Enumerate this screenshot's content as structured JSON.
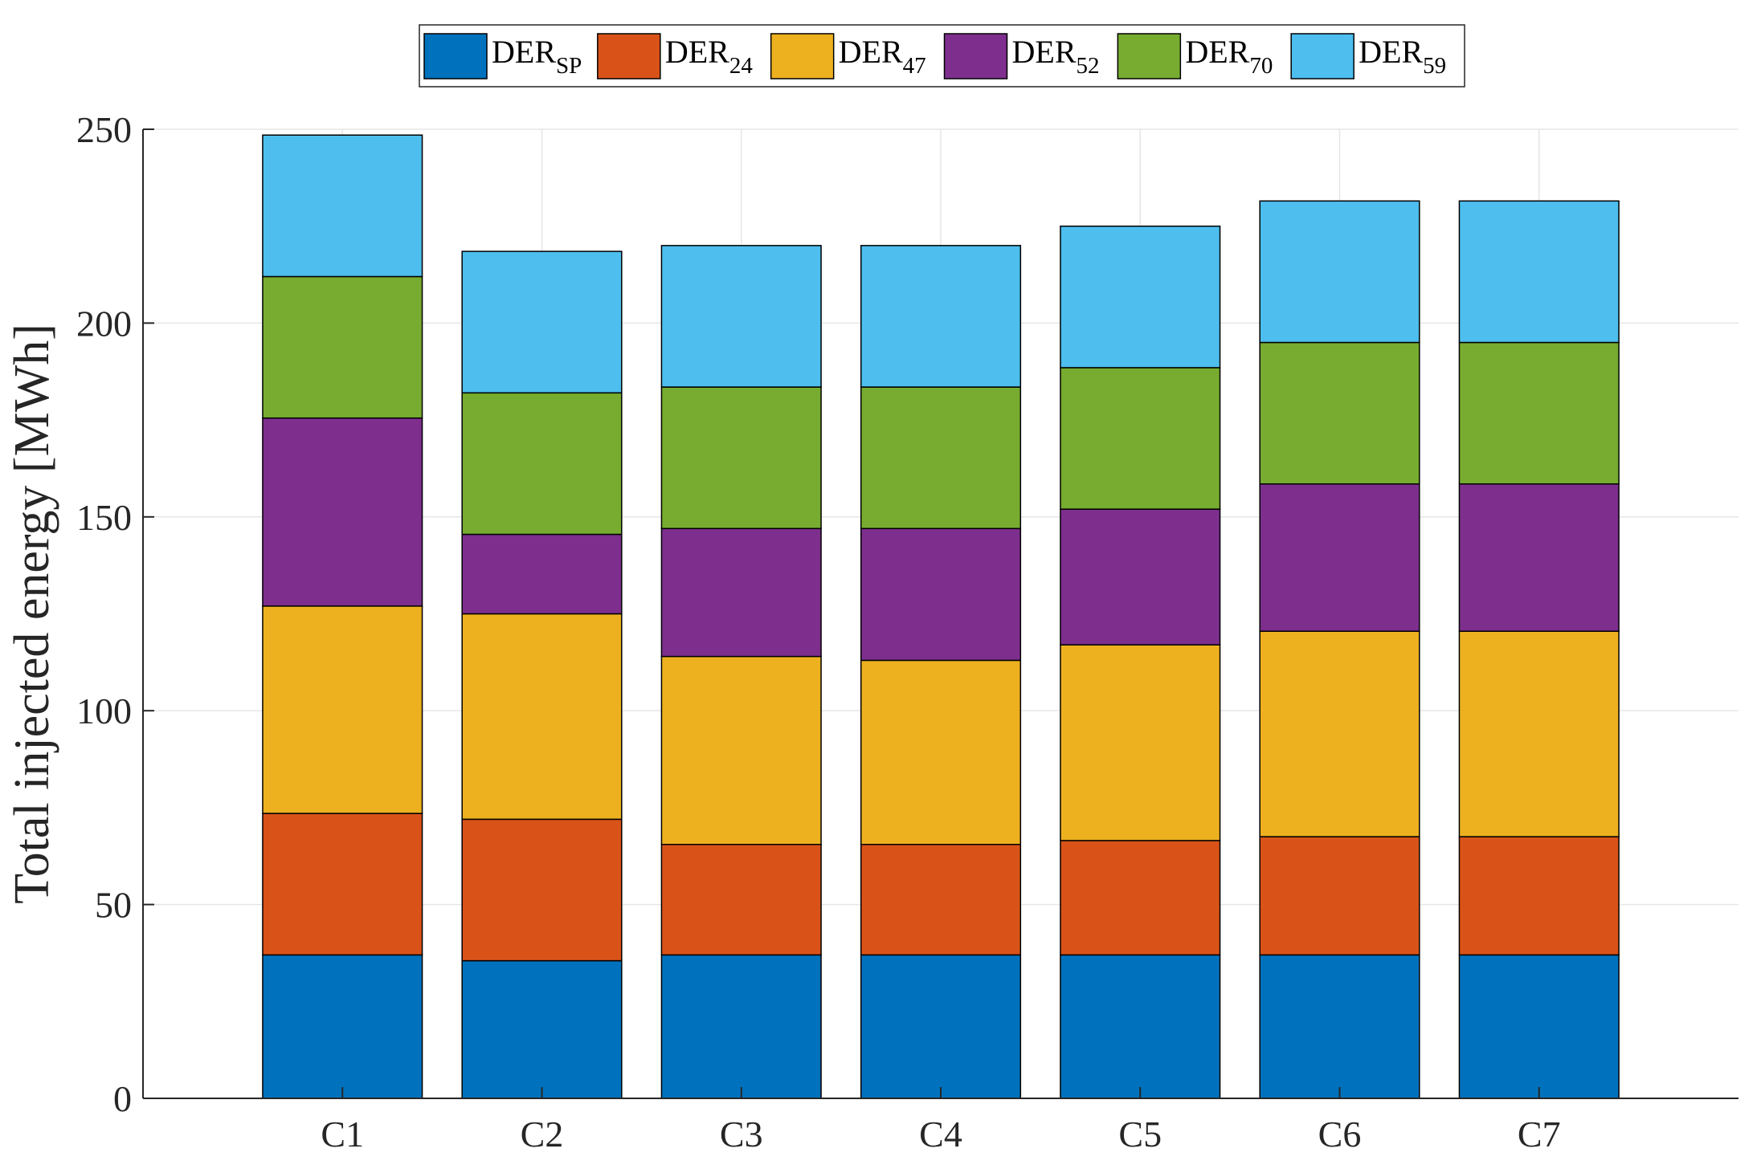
{
  "chart_data": {
    "type": "bar",
    "stacked": true,
    "title": "",
    "xlabel": "",
    "ylabel": "Total injected energy [MWh]",
    "ylim": [
      0,
      250
    ],
    "yticks": [
      0,
      50,
      100,
      150,
      200,
      250
    ],
    "xlim": [
      0,
      8
    ],
    "grid": true,
    "legend_position": "top-center-outside",
    "categories": [
      "C1",
      "C2",
      "C3",
      "C4",
      "C5",
      "C6",
      "C7"
    ],
    "series": [
      {
        "name": "DER",
        "sub": "SP",
        "color": "#0072BD",
        "values": [
          37,
          35.5,
          37,
          37,
          37,
          37,
          37
        ]
      },
      {
        "name": "DER",
        "sub": "24",
        "color": "#D95319",
        "values": [
          36.5,
          36.5,
          28.5,
          28.5,
          29.5,
          30.5,
          30.5
        ]
      },
      {
        "name": "DER",
        "sub": "47",
        "color": "#EDB120",
        "values": [
          53.5,
          53,
          48.5,
          47.5,
          50.5,
          53,
          53
        ]
      },
      {
        "name": "DER",
        "sub": "52",
        "color": "#7E2F8E",
        "values": [
          48.5,
          20.5,
          33,
          34,
          35,
          38,
          38
        ]
      },
      {
        "name": "DER",
        "sub": "70",
        "color": "#77AC30",
        "values": [
          36.5,
          36.5,
          36.5,
          36.5,
          36.5,
          36.5,
          36.5
        ]
      },
      {
        "name": "DER",
        "sub": "59",
        "color": "#4DBEEE",
        "values": [
          36.5,
          36.5,
          36.5,
          36.5,
          36.5,
          36.5,
          36.5
        ]
      }
    ]
  }
}
